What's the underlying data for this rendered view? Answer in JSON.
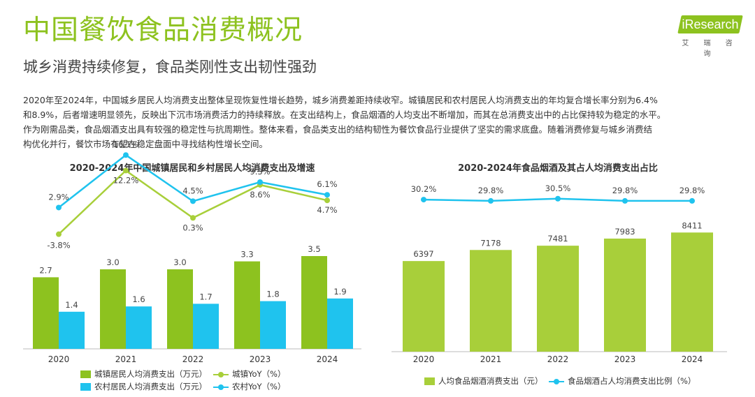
{
  "header": {
    "title": "中国餐饮食品消费概况",
    "subtitle": "城乡消费持续修复，食品类刚性支出韧性强劲",
    "logo": {
      "text": "iResearch",
      "sub": "艾 瑞 咨 询"
    }
  },
  "paragraph": [
    "2020年至2024年，中国城乡居民人均消费支出整体呈现恢复性增长趋势，城乡消费差距持续收窄。城镇居民和农村居民人均消费支出的年均复合增长率分别为6.4%",
    "和8.9%，后者增速明显领先，反映出下沉市场消费活力的持续释放。在支出结构上，食品烟酒的人均支出不断增加，而其在总消费支出中的占比保持较为稳定的水平。",
    "作为刚需品类，食品烟酒支出具有较强的稳定性与抗周期性。整体来看，食品类支出的结构韧性为餐饮食品行业提供了坚实的需求底盘。随着消费修复与城乡消费结",
    "构优化并行，餐饮市场有望在稳定盘面中寻找结构性增长空间。"
  ],
  "colors": {
    "green": "#8dc21f",
    "blue": "#1fc3ee",
    "title_green": "#8dc21f"
  },
  "chart_data": [
    {
      "type": "bar",
      "title": "2020-2024年中国城镇居民和乡村居民人均消费支出及增速",
      "categories": [
        "2020",
        "2021",
        "2022",
        "2023",
        "2024"
      ],
      "series": [
        {
          "name": "城镇居民人均消费支出（万元）",
          "kind": "bar",
          "color": "#8dc21f",
          "values": [
            2.7,
            3.0,
            3.0,
            3.3,
            3.5
          ],
          "labels": [
            "2.7",
            "3.0",
            "3.0",
            "3.3",
            "3.5"
          ]
        },
        {
          "name": "农村居民人均消费支出（万元）",
          "kind": "bar",
          "color": "#1fc3ee",
          "values": [
            1.4,
            1.6,
            1.7,
            1.8,
            1.9
          ],
          "labels": [
            "1.4",
            "1.6",
            "1.7",
            "1.8",
            "1.9"
          ]
        },
        {
          "name": "城镇YoY（%）",
          "kind": "line",
          "color": "#a8cf3a",
          "values": [
            -3.8,
            12.2,
            0.3,
            8.6,
            4.7
          ],
          "labels": [
            "-3.8%",
            "12.2%",
            "0.3%",
            "8.6%",
            "4.7%"
          ]
        },
        {
          "name": "农村YoY（%）",
          "kind": "line",
          "color": "#1fc3ee",
          "values": [
            2.9,
            16.1,
            4.5,
            9.3,
            6.1
          ],
          "labels": [
            "2.9%",
            "16.1%",
            "4.5%",
            "9.3%",
            "6.1%"
          ]
        }
      ]
    },
    {
      "type": "bar",
      "title": "2020-2024年食品烟酒及其占人均消费支出占比",
      "categories": [
        "2020",
        "2021",
        "2022",
        "2023",
        "2024"
      ],
      "series": [
        {
          "name": "人均食品烟酒消费支出（元）",
          "kind": "bar",
          "color": "#a8cf3a",
          "values": [
            6397,
            7178,
            7481,
            7983,
            8411
          ],
          "labels": [
            "6397",
            "7178",
            "7481",
            "7983",
            "8411"
          ]
        },
        {
          "name": "食品烟酒占人均消费支出比例（%）",
          "kind": "line",
          "color": "#1fc3ee",
          "values": [
            30.2,
            29.8,
            30.5,
            29.8,
            29.8
          ],
          "labels": [
            "30.2%",
            "29.8%",
            "30.5%",
            "29.8%",
            "29.8%"
          ]
        }
      ]
    }
  ]
}
